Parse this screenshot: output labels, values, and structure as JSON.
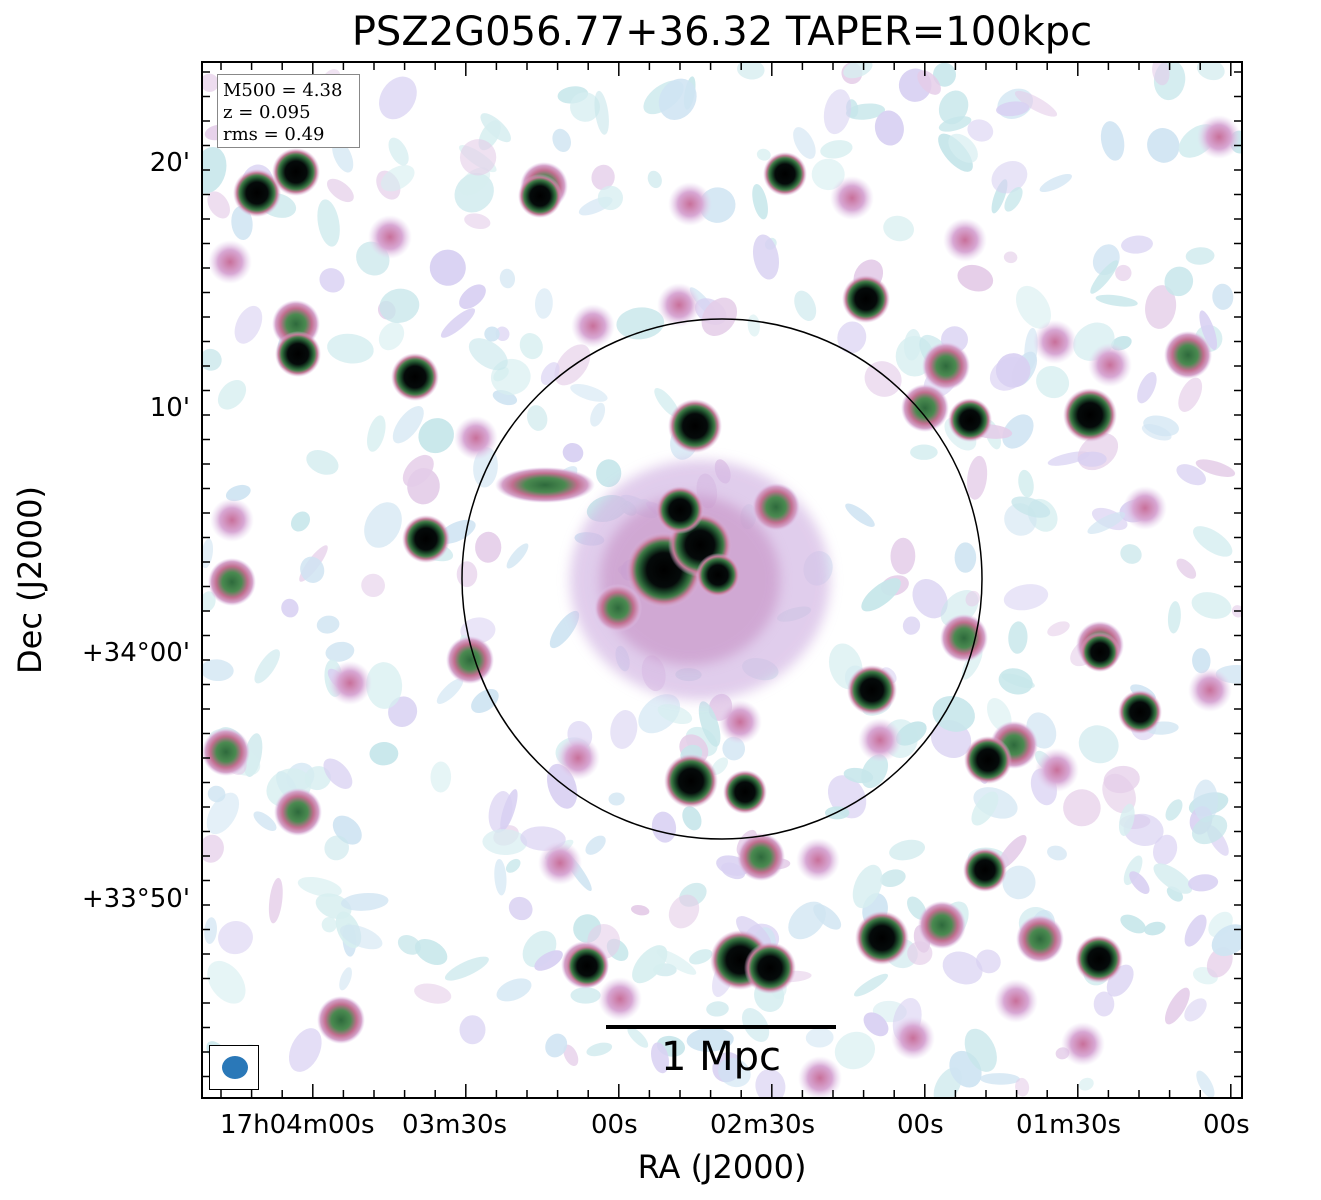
{
  "title": "PSZ2G056.77+36.32 TAPER=100kpc",
  "info": {
    "m500": "M500 = 4.38",
    "z": "z = 0.095",
    "rms": "rms = 0.49"
  },
  "scale_bar": {
    "label": "1 Mpc"
  },
  "axes": {
    "xlabel": "RA (J2000)",
    "ylabel": "Dec (J2000)",
    "x_ticks": [
      "17h04m00s",
      "03m30s",
      "00s",
      "02m30s",
      "00s",
      "01m30s",
      "00s"
    ],
    "y_ticks": [
      "20'",
      "10'",
      "+34°00'",
      "+33°50'"
    ]
  },
  "colors": {
    "beam": "#2a78b8",
    "frame": "#000000"
  }
}
